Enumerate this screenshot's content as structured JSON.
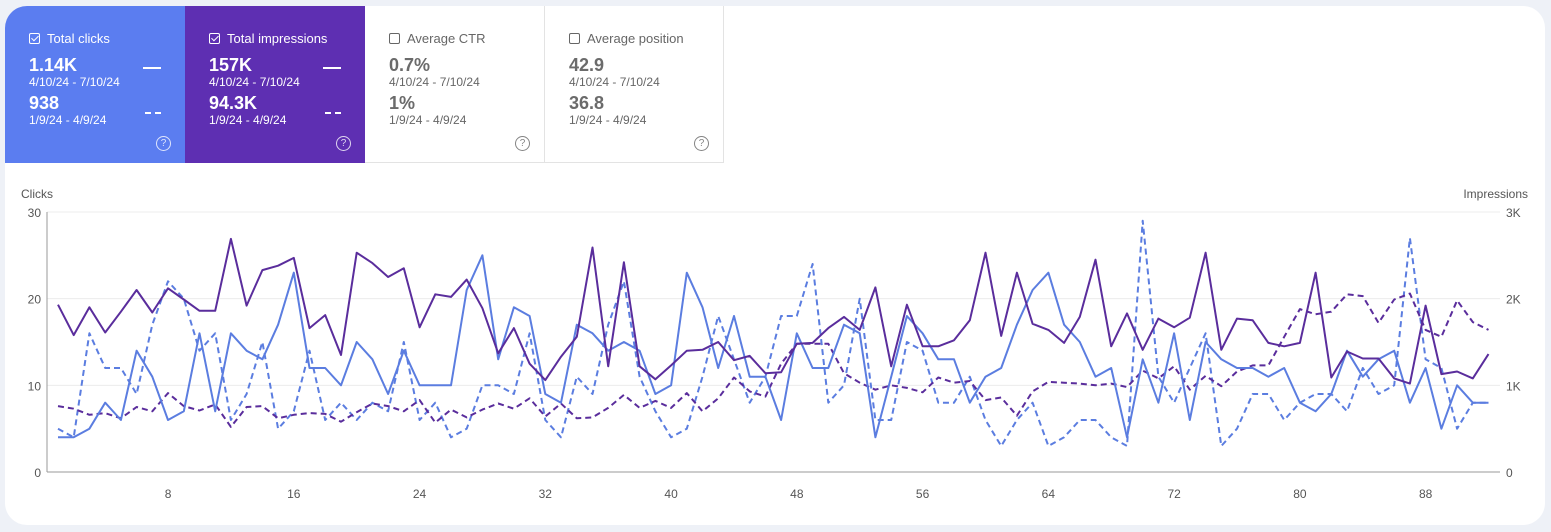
{
  "metrics": [
    {
      "label": "Total clicks",
      "checked": true,
      "current": "1.14K",
      "current_range": "4/10/24 - 7/10/24",
      "previous": "938",
      "previous_range": "1/9/24 - 4/9/24",
      "color": "#5b7df0"
    },
    {
      "label": "Total impressions",
      "checked": true,
      "current": "157K",
      "current_range": "4/10/24 - 7/10/24",
      "previous": "94.3K",
      "previous_range": "1/9/24 - 4/9/24",
      "color": "#5e2fb2"
    },
    {
      "label": "Average CTR",
      "checked": false,
      "current": "0.7%",
      "current_range": "4/10/24 - 7/10/24",
      "previous": "1%",
      "previous_range": "1/9/24 - 4/9/24"
    },
    {
      "label": "Average position",
      "checked": false,
      "current": "42.9",
      "current_range": "4/10/24 - 7/10/24",
      "previous": "36.8",
      "previous_range": "1/9/24 - 4/9/24"
    }
  ],
  "help_icon": "?",
  "chart_data": {
    "type": "line",
    "ylabel_left": "Clicks",
    "ylabel_right": "Impressions",
    "ylim_left": [
      0,
      30
    ],
    "ylim_right": [
      0,
      3000
    ],
    "yticks_left": [
      "0",
      "10",
      "20",
      "30"
    ],
    "yticks_right": [
      "0",
      "1K",
      "2K",
      "3K"
    ],
    "xticks": [
      "8",
      "16",
      "24",
      "32",
      "40",
      "48",
      "56",
      "64",
      "72",
      "80",
      "88"
    ],
    "x_start": 1,
    "grid": true,
    "series": [
      {
        "metric": "clicks",
        "period": "4/10/24 - 7/10/24",
        "axis": "left",
        "style": "solid",
        "color": "#5b7de0",
        "values": [
          4,
          4,
          5,
          8,
          6,
          14,
          11,
          6,
          7,
          16,
          7,
          16,
          14,
          13,
          17,
          23,
          12,
          12,
          10,
          15,
          13,
          9,
          14,
          10,
          10,
          10,
          21,
          25,
          13,
          19,
          18,
          9,
          8,
          17,
          16,
          14,
          15,
          14,
          9,
          10,
          23,
          19,
          12,
          18,
          11,
          11,
          6,
          16,
          12,
          12,
          17,
          16,
          4,
          11,
          18,
          16,
          13,
          13,
          8,
          11,
          12,
          17,
          21,
          23,
          17,
          15,
          11,
          12,
          4,
          13,
          8,
          16,
          6,
          15,
          13,
          12,
          12,
          11,
          12,
          8,
          7,
          9,
          14,
          11,
          13,
          14,
          8,
          12,
          5,
          10,
          8,
          8
        ]
      },
      {
        "metric": "clicks",
        "period": "1/9/24 - 4/9/24",
        "axis": "left",
        "style": "dashed",
        "color": "#5b7de0",
        "values": [
          5,
          4,
          16,
          12,
          12,
          9,
          17,
          22,
          20,
          14,
          16,
          6,
          9,
          15,
          5,
          7,
          14,
          6,
          8,
          6,
          8,
          7,
          15,
          6,
          8,
          4,
          5,
          10,
          10,
          9,
          16,
          6,
          4,
          11,
          9,
          17,
          22,
          11,
          7,
          4,
          5,
          11,
          18,
          13,
          8,
          11,
          18,
          18,
          24,
          8,
          10,
          20,
          6,
          6,
          15,
          14,
          8,
          8,
          11,
          6,
          3,
          6,
          8,
          3,
          4,
          6,
          6,
          4,
          3,
          29,
          11,
          8,
          12,
          16,
          3,
          5,
          9,
          9,
          6,
          8,
          9,
          9,
          7,
          12,
          9,
          10,
          27,
          13,
          12,
          5,
          8,
          8
        ]
      },
      {
        "metric": "impressions",
        "period": "4/10/24 - 7/10/24",
        "axis": "right",
        "style": "solid",
        "color": "#5a2d9c",
        "values": [
          1930,
          1580,
          1900,
          1610,
          1850,
          2100,
          1840,
          2120,
          1990,
          1860,
          1860,
          2690,
          1920,
          2330,
          2380,
          2470,
          1660,
          1810,
          1350,
          2530,
          2410,
          2250,
          2350,
          1670,
          2050,
          2020,
          2220,
          1890,
          1370,
          1660,
          1250,
          1060,
          1330,
          1560,
          2590,
          1220,
          2420,
          1220,
          1070,
          1230,
          1400,
          1410,
          1500,
          1290,
          1340,
          1140,
          1150,
          1480,
          1490,
          1660,
          1790,
          1640,
          2130,
          1220,
          1930,
          1450,
          1450,
          1520,
          1750,
          2530,
          1570,
          2300,
          1710,
          1640,
          1490,
          1790,
          2450,
          1450,
          1830,
          1410,
          1770,
          1670,
          1780,
          2530,
          1410,
          1770,
          1750,
          1490,
          1450,
          1490,
          2300,
          1090,
          1390,
          1310,
          1310,
          1080,
          1020,
          1920,
          1130,
          1160,
          1080,
          1360
        ]
      },
      {
        "metric": "impressions",
        "period": "1/9/24 - 4/9/24",
        "axis": "right",
        "style": "dashed",
        "color": "#5a2d9c",
        "values": [
          760,
          730,
          660,
          680,
          620,
          750,
          700,
          910,
          760,
          710,
          780,
          520,
          750,
          760,
          620,
          660,
          680,
          670,
          580,
          690,
          790,
          760,
          700,
          830,
          570,
          720,
          630,
          720,
          790,
          730,
          850,
          640,
          790,
          620,
          630,
          740,
          890,
          740,
          820,
          740,
          910,
          700,
          850,
          1090,
          930,
          870,
          1250,
          1480,
          1480,
          1480,
          1140,
          1030,
          950,
          1000,
          970,
          920,
          1090,
          1030,
          1050,
          830,
          860,
          650,
          930,
          1040,
          1030,
          1020,
          1000,
          1020,
          980,
          1170,
          1080,
          1220,
          950,
          1110,
          990,
          1160,
          1230,
          1230,
          1560,
          1880,
          1820,
          1850,
          2050,
          2030,
          1720,
          1990,
          2060,
          1640,
          1560,
          1980,
          1730,
          1640
        ]
      }
    ]
  }
}
